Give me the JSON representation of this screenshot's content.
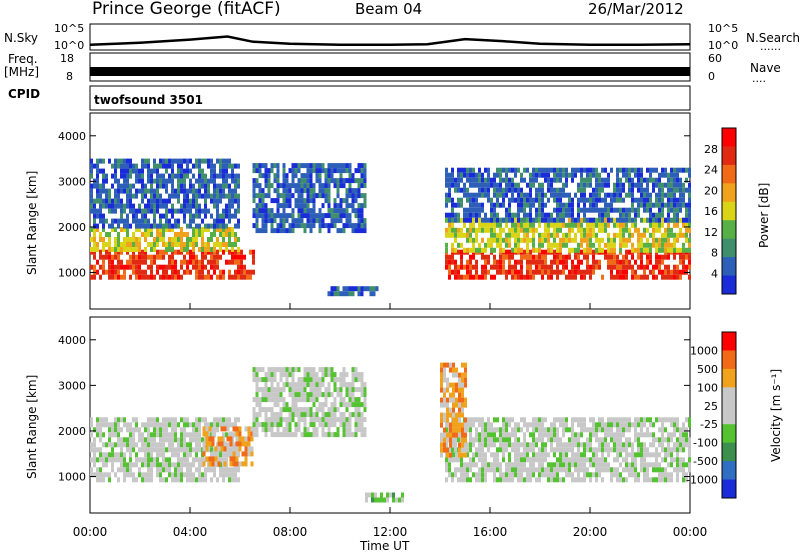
{
  "header": {
    "station": "Prince George (fitACF)",
    "beam": "Beam 04",
    "date": "26/Mar/2012"
  },
  "labels": {
    "nsky": "N.Sky",
    "nsearch": "N.Search",
    "freq": "Freq.",
    "mhz": "[MHz]",
    "nave": "Nave",
    "cpid": "CPID",
    "program": "twofsound 3501",
    "time_axis": "Time UT",
    "slant_range": "Slant Range [km]",
    "power_label": "Power [dB]",
    "velocity_label": "Velocity [m s⁻¹]",
    "dots": "......",
    "dots_short": "...."
  },
  "ticks": {
    "noise_left": [
      "10^5",
      "10^0"
    ],
    "noise_right": [
      "10^5",
      "10^0"
    ],
    "freq_left": [
      "18",
      "8"
    ],
    "nave_right": [
      "60",
      "0"
    ]
  },
  "colors": {
    "power_scale": [
      "#1a2bd8",
      "#2e5fb8",
      "#3f8f6f",
      "#56b046",
      "#d9d417",
      "#f0a21d",
      "#f06a18",
      "#e02a12",
      "#ff0000"
    ],
    "velocity_scale": [
      "#1a2bd8",
      "#2f6ec0",
      "#3c8f4c",
      "#55c232",
      "#c8c8c8",
      "#c8c8c8",
      "#f0a21d",
      "#f06a18",
      "#ff0000"
    ]
  },
  "chart_data": [
    {
      "type": "line",
      "name": "noise",
      "series": [
        {
          "name": "N.Sky",
          "x": [
            "00:00",
            "02:00",
            "04:00",
            "05:30",
            "06:30",
            "08:00",
            "10:00",
            "12:00",
            "13:30",
            "15:00",
            "16:30",
            "18:00",
            "20:00",
            "22:00",
            "24:00"
          ],
          "values": [
            1.0,
            1.4,
            2.0,
            2.6,
            1.6,
            1.2,
            1.0,
            1.0,
            1.1,
            2.1,
            1.7,
            1.2,
            1.0,
            1.0,
            1.1
          ]
        }
      ],
      "ylim": [
        0,
        5
      ]
    },
    {
      "type": "bar",
      "name": "frequency",
      "x_range": [
        "00:00",
        "24:00"
      ],
      "value_range": [
        10,
        12
      ],
      "ylim": [
        8,
        18
      ]
    },
    {
      "type": "heatmap",
      "name": "power",
      "xlabel": "Time UT",
      "ylabel": "Slant Range [km]",
      "x_ticks": [
        "00:00",
        "04:00",
        "08:00",
        "12:00",
        "16:00",
        "20:00",
        "00:00"
      ],
      "y_ticks": [
        1000,
        2000,
        3000,
        4000
      ],
      "ylim": [
        200,
        4500
      ],
      "colorbar_ticks": [
        4,
        8,
        12,
        16,
        20,
        24,
        28
      ],
      "colorbar_label": "Power [dB]",
      "regions": [
        {
          "t0": 0.0,
          "t1": 6.6,
          "r0": 850,
          "r1": 1500,
          "level": 7
        },
        {
          "t0": 0.0,
          "t1": 6.0,
          "r0": 1500,
          "r1": 2000,
          "level": 4
        },
        {
          "t0": 0.0,
          "t1": 6.0,
          "r0": 2000,
          "r1": 3500,
          "level": 1
        },
        {
          "t0": 6.5,
          "t1": 11.0,
          "r0": 1900,
          "r1": 3400,
          "level": 1
        },
        {
          "t0": 14.2,
          "t1": 24.0,
          "r0": 850,
          "r1": 1500,
          "level": 7
        },
        {
          "t0": 14.2,
          "t1": 24.0,
          "r0": 1500,
          "r1": 2200,
          "level": 4
        },
        {
          "t0": 14.2,
          "t1": 24.0,
          "r0": 2200,
          "r1": 3300,
          "level": 1
        },
        {
          "t0": 9.5,
          "t1": 11.5,
          "r0": 500,
          "r1": 700,
          "level": 1
        }
      ]
    },
    {
      "type": "heatmap",
      "name": "velocity",
      "xlabel": "Time UT",
      "ylabel": "Slant Range [km]",
      "x_ticks": [
        "00:00",
        "04:00",
        "08:00",
        "12:00",
        "16:00",
        "20:00",
        "00:00"
      ],
      "y_ticks": [
        1000,
        2000,
        3000,
        4000
      ],
      "ylim": [
        200,
        4500
      ],
      "colorbar_ticks": [
        "1000",
        "500",
        "100",
        "25",
        "-25",
        "-100",
        "-500",
        "-1000"
      ],
      "colorbar_label": "Velocity [m s⁻¹]",
      "regions": [
        {
          "t0": 0.0,
          "t1": 6.0,
          "r0": 900,
          "r1": 2300,
          "level": 4
        },
        {
          "t0": 4.5,
          "t1": 6.5,
          "r0": 1300,
          "r1": 2100,
          "level": 6
        },
        {
          "t0": 6.5,
          "t1": 11.0,
          "r0": 1900,
          "r1": 3400,
          "level": 4
        },
        {
          "t0": 14.2,
          "t1": 24.0,
          "r0": 900,
          "r1": 2300,
          "level": 4
        },
        {
          "t0": 14.0,
          "t1": 15.0,
          "r0": 1500,
          "r1": 3500,
          "level": 6
        },
        {
          "t0": 11.0,
          "t1": 12.5,
          "r0": 450,
          "r1": 650,
          "level": 3
        }
      ]
    }
  ]
}
